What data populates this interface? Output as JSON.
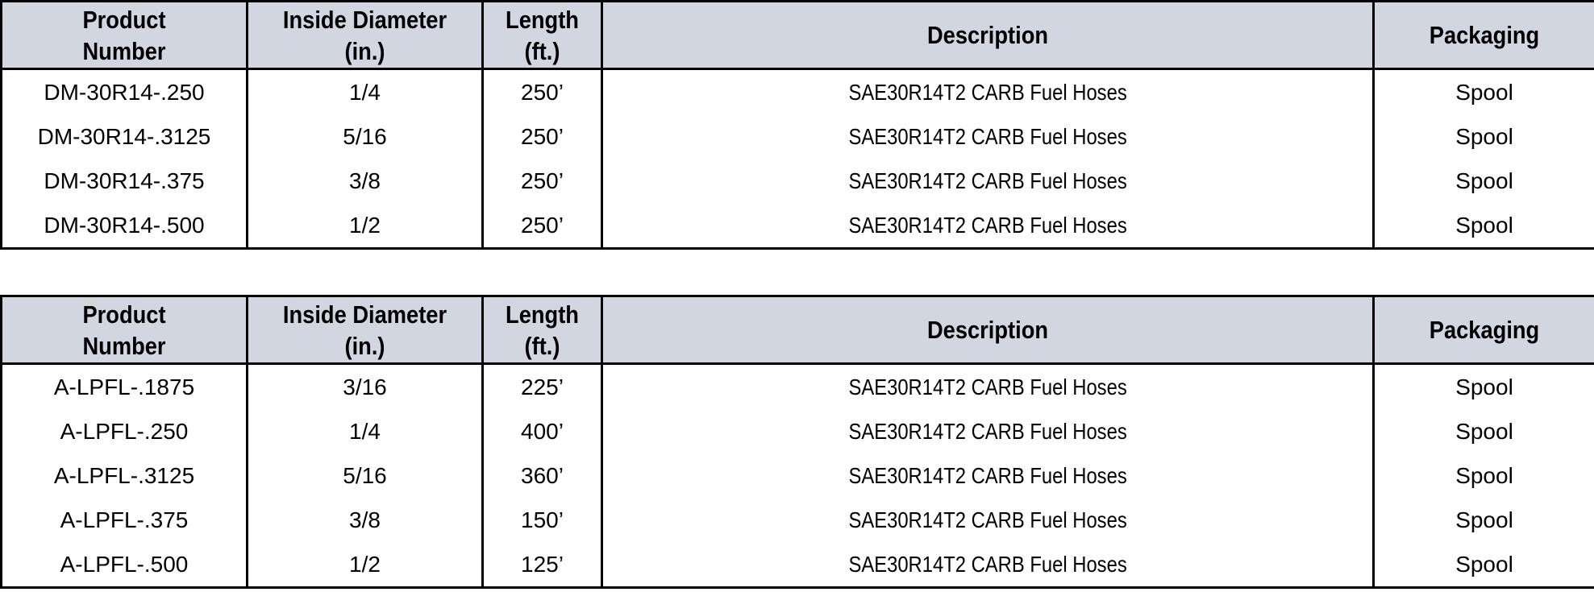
{
  "colors": {
    "header_bg": "#d1d6e0",
    "border": "#000000",
    "text": "#000000",
    "page_bg": "#ffffff"
  },
  "columns": [
    {
      "line1": "Product",
      "line2": "Number"
    },
    {
      "line1": "Inside Diameter",
      "line2": "(in.)"
    },
    {
      "line1": "Length",
      "line2": "(ft.)"
    },
    {
      "line1": "Description"
    },
    {
      "line1": "Packaging"
    }
  ],
  "tables": [
    {
      "rows": [
        {
          "product_number": "DM-30R14-.250",
          "inside_diameter": "1/4",
          "length": "250’",
          "description": "SAE30R14T2 CARB Fuel Hoses",
          "packaging": "Spool"
        },
        {
          "product_number": "DM-30R14-.3125",
          "inside_diameter": "5/16",
          "length": "250’",
          "description": "SAE30R14T2 CARB Fuel Hoses",
          "packaging": "Spool"
        },
        {
          "product_number": "DM-30R14-.375",
          "inside_diameter": "3/8",
          "length": "250’",
          "description": "SAE30R14T2 CARB Fuel Hoses",
          "packaging": "Spool"
        },
        {
          "product_number": "DM-30R14-.500",
          "inside_diameter": "1/2",
          "length": "250’",
          "description": "SAE30R14T2 CARB Fuel Hoses",
          "packaging": "Spool"
        }
      ]
    },
    {
      "rows": [
        {
          "product_number": "A-LPFL-.1875",
          "inside_diameter": "3/16",
          "length": "225’",
          "description": "SAE30R14T2 CARB Fuel Hoses",
          "packaging": "Spool"
        },
        {
          "product_number": "A-LPFL-.250",
          "inside_diameter": "1/4",
          "length": "400’",
          "description": "SAE30R14T2 CARB Fuel Hoses",
          "packaging": "Spool"
        },
        {
          "product_number": "A-LPFL-.3125",
          "inside_diameter": "5/16",
          "length": "360’",
          "description": "SAE30R14T2 CARB Fuel Hoses",
          "packaging": "Spool"
        },
        {
          "product_number": "A-LPFL-.375",
          "inside_diameter": "3/8",
          "length": "150’",
          "description": "SAE30R14T2 CARB Fuel Hoses",
          "packaging": "Spool"
        },
        {
          "product_number": "A-LPFL-.500",
          "inside_diameter": "1/2",
          "length": "125’",
          "description": "SAE30R14T2 CARB Fuel Hoses",
          "packaging": "Spool"
        }
      ]
    }
  ]
}
